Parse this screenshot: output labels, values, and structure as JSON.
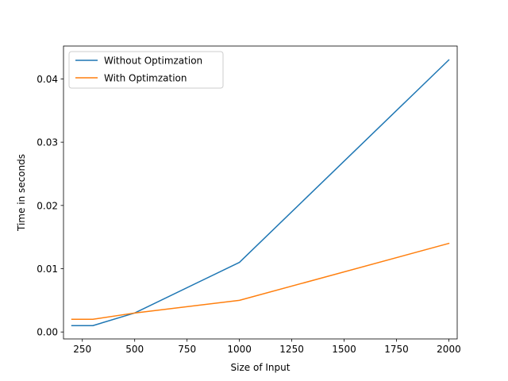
{
  "chart_data": {
    "type": "line",
    "title": "",
    "xlabel": "Size of Input",
    "ylabel": "Time in seconds",
    "xlim": [
      160,
      2040
    ],
    "ylim": [
      -0.0011,
      0.0452
    ],
    "x_ticks": [
      250,
      500,
      750,
      1000,
      1250,
      1500,
      1750,
      2000
    ],
    "y_ticks": [
      0.0,
      0.01,
      0.02,
      0.03,
      0.04
    ],
    "x_tick_labels": [
      "250",
      "500",
      "750",
      "1000",
      "1250",
      "1500",
      "1750",
      "2000"
    ],
    "y_tick_labels": [
      "0.00",
      "0.01",
      "0.02",
      "0.03",
      "0.04"
    ],
    "grid": false,
    "legend_position": "top-left",
    "x": [
      200,
      300,
      500,
      1000,
      2000
    ],
    "series": [
      {
        "name": "Without Optimzation",
        "color": "#1f77b4",
        "values": [
          0.001,
          0.001,
          0.003,
          0.011,
          0.043
        ]
      },
      {
        "name": "With Optimzation",
        "color": "#ff7f0e",
        "values": [
          0.002,
          0.002,
          0.003,
          0.005,
          0.014
        ]
      }
    ]
  }
}
